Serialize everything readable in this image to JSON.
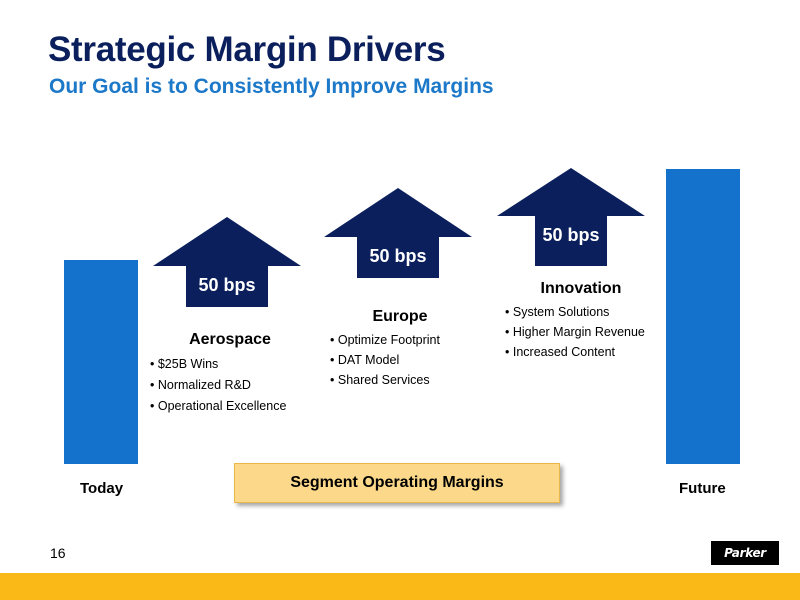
{
  "slide": {
    "title": "Strategic Margin Drivers",
    "subtitle": "Our Goal is to Consistently Improve Margins",
    "page_number": "16",
    "logo_text": "Parker"
  },
  "bars": {
    "today_label": "Today",
    "future_label": "Future"
  },
  "drivers": [
    {
      "value": "50 bps",
      "title": "Aerospace",
      "bullets": [
        "$25B Wins",
        "Normalized R&D",
        "Operational Excellence"
      ]
    },
    {
      "value": "50 bps",
      "title": "Europe",
      "bullets": [
        "Optimize Footprint",
        "DAT Model",
        "Shared Services"
      ]
    },
    {
      "value": "50 bps",
      "title": "Innovation",
      "bullets": [
        "System Solutions",
        "Higher Margin Revenue",
        "Increased Content"
      ]
    }
  ],
  "segment_box": {
    "label": "Segment Operating Margins"
  },
  "colors": {
    "title": "#0a1f5c",
    "subtitle": "#1c78c8",
    "bar": "#1572cc",
    "arrow": "#0a1f5c",
    "segment_box": "#fcd98a",
    "footer": "#fbb917"
  }
}
